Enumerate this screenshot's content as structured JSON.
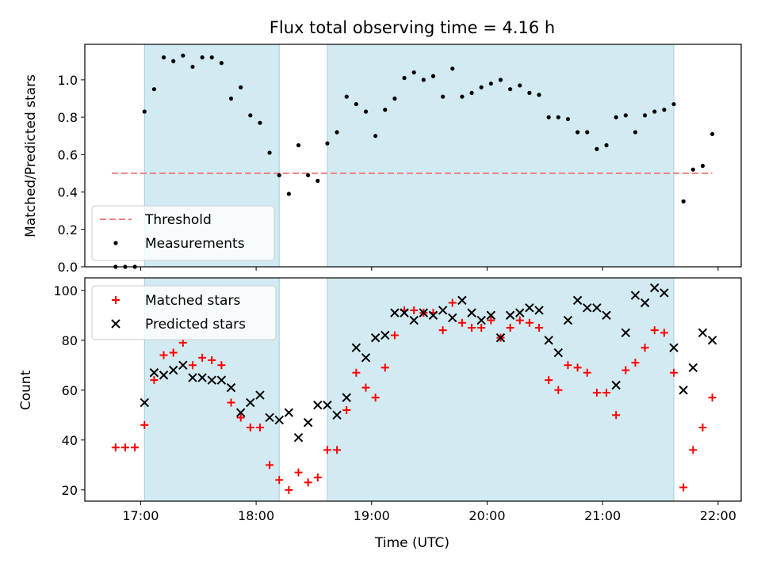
{
  "chart_data": [
    {
      "type": "scatter",
      "title": "Flux total observing time = 4.16 h",
      "ylabel": "Matched/Predicted stars",
      "xlabel": "",
      "ylim": [
        0,
        1.19
      ],
      "xlim": [
        "16:31",
        "22:12"
      ],
      "yticks": [
        "0.0",
        "0.2",
        "0.4",
        "0.6",
        "0.8",
        "1.0"
      ],
      "shaded_intervals": [
        [
          "17:02",
          "18:12"
        ],
        [
          "18:37",
          "21:37"
        ]
      ],
      "shade_color": "#add8e6",
      "threshold": {
        "name": "Threshold",
        "value": 0.5,
        "x_range": [
          "16:45",
          "21:57"
        ],
        "color": "#f08080"
      },
      "legend_position": "lower left",
      "series": [
        {
          "name": "Measurements",
          "color": "#000000",
          "marker": "dot",
          "points": [
            [
              "16:47",
              0.0
            ],
            [
              "16:52",
              0.0
            ],
            [
              "16:57",
              0.0
            ],
            [
              "17:02",
              0.83
            ],
            [
              "17:07",
              0.95
            ],
            [
              "17:12",
              1.12
            ],
            [
              "17:17",
              1.1
            ],
            [
              "17:22",
              1.13
            ],
            [
              "17:27",
              1.07
            ],
            [
              "17:32",
              1.12
            ],
            [
              "17:37",
              1.12
            ],
            [
              "17:42",
              1.09
            ],
            [
              "17:47",
              0.9
            ],
            [
              "17:52",
              0.96
            ],
            [
              "17:57",
              0.81
            ],
            [
              "18:02",
              0.77
            ],
            [
              "18:07",
              0.61
            ],
            [
              "18:12",
              0.49
            ],
            [
              "18:17",
              0.39
            ],
            [
              "18:22",
              0.65
            ],
            [
              "18:27",
              0.49
            ],
            [
              "18:32",
              0.46
            ],
            [
              "18:37",
              0.66
            ],
            [
              "18:42",
              0.72
            ],
            [
              "18:47",
              0.91
            ],
            [
              "18:52",
              0.87
            ],
            [
              "18:57",
              0.83
            ],
            [
              "19:02",
              0.7
            ],
            [
              "19:07",
              0.84
            ],
            [
              "19:12",
              0.9
            ],
            [
              "19:17",
              1.01
            ],
            [
              "19:22",
              1.04
            ],
            [
              "19:27",
              1.0
            ],
            [
              "19:32",
              1.02
            ],
            [
              "19:37",
              0.91
            ],
            [
              "19:42",
              1.06
            ],
            [
              "19:47",
              0.91
            ],
            [
              "19:52",
              0.93
            ],
            [
              "19:57",
              0.96
            ],
            [
              "20:02",
              0.98
            ],
            [
              "20:07",
              1.0
            ],
            [
              "20:12",
              0.95
            ],
            [
              "20:17",
              0.97
            ],
            [
              "20:22",
              0.93
            ],
            [
              "20:27",
              0.92
            ],
            [
              "20:32",
              0.8
            ],
            [
              "20:37",
              0.8
            ],
            [
              "20:42",
              0.79
            ],
            [
              "20:47",
              0.72
            ],
            [
              "20:52",
              0.72
            ],
            [
              "20:57",
              0.63
            ],
            [
              "21:02",
              0.65
            ],
            [
              "21:07",
              0.8
            ],
            [
              "21:12",
              0.81
            ],
            [
              "21:17",
              0.72
            ],
            [
              "21:22",
              0.81
            ],
            [
              "21:27",
              0.83
            ],
            [
              "21:32",
              0.84
            ],
            [
              "21:37",
              0.87
            ],
            [
              "21:42",
              0.35
            ],
            [
              "21:47",
              0.52
            ],
            [
              "21:52",
              0.54
            ],
            [
              "21:57",
              0.71
            ]
          ]
        }
      ]
    },
    {
      "type": "scatter",
      "title": "",
      "ylabel": "Count",
      "xlabel": "Time (UTC)",
      "ylim": [
        15.5,
        105
      ],
      "xlim": [
        "16:31",
        "22:12"
      ],
      "xticks": [
        "17:00",
        "18:00",
        "19:00",
        "20:00",
        "21:00",
        "22:00"
      ],
      "yticks": [
        "20",
        "40",
        "60",
        "80",
        "100"
      ],
      "shaded_intervals": [
        [
          "17:02",
          "18:12"
        ],
        [
          "18:37",
          "21:37"
        ]
      ],
      "shade_color": "#add8e6",
      "legend_position": "upper left",
      "series": [
        {
          "name": "Matched stars",
          "color": "#ff0000",
          "marker": "plus",
          "points": [
            [
              "16:47",
              37
            ],
            [
              "16:52",
              37
            ],
            [
              "16:57",
              37
            ],
            [
              "17:02",
              46
            ],
            [
              "17:07",
              64
            ],
            [
              "17:12",
              74
            ],
            [
              "17:17",
              75
            ],
            [
              "17:22",
              79
            ],
            [
              "17:27",
              70
            ],
            [
              "17:32",
              73
            ],
            [
              "17:37",
              72
            ],
            [
              "17:42",
              70
            ],
            [
              "17:47",
              55
            ],
            [
              "17:52",
              49
            ],
            [
              "17:57",
              45
            ],
            [
              "18:02",
              45
            ],
            [
              "18:07",
              30
            ],
            [
              "18:12",
              24
            ],
            [
              "18:17",
              20
            ],
            [
              "18:22",
              27
            ],
            [
              "18:27",
              23
            ],
            [
              "18:32",
              25
            ],
            [
              "18:37",
              36
            ],
            [
              "18:42",
              36
            ],
            [
              "18:47",
              52
            ],
            [
              "18:52",
              67
            ],
            [
              "18:57",
              61
            ],
            [
              "19:02",
              57
            ],
            [
              "19:07",
              69
            ],
            [
              "19:12",
              82
            ],
            [
              "19:17",
              92
            ],
            [
              "19:22",
              92
            ],
            [
              "19:27",
              91
            ],
            [
              "19:32",
              91
            ],
            [
              "19:37",
              84
            ],
            [
              "19:42",
              95
            ],
            [
              "19:47",
              87
            ],
            [
              "19:52",
              85
            ],
            [
              "19:57",
              85
            ],
            [
              "20:02",
              88
            ],
            [
              "20:07",
              81
            ],
            [
              "20:12",
              85
            ],
            [
              "20:17",
              88
            ],
            [
              "20:22",
              87
            ],
            [
              "20:27",
              85
            ],
            [
              "20:32",
              64
            ],
            [
              "20:37",
              60
            ],
            [
              "20:42",
              70
            ],
            [
              "20:47",
              69
            ],
            [
              "20:52",
              67
            ],
            [
              "20:57",
              59
            ],
            [
              "21:02",
              59
            ],
            [
              "21:07",
              50
            ],
            [
              "21:12",
              68
            ],
            [
              "21:17",
              71
            ],
            [
              "21:22",
              77
            ],
            [
              "21:27",
              84
            ],
            [
              "21:32",
              83
            ],
            [
              "21:37",
              67
            ],
            [
              "21:42",
              21
            ],
            [
              "21:47",
              36
            ],
            [
              "21:52",
              45
            ],
            [
              "21:57",
              57
            ]
          ]
        },
        {
          "name": "Predicted stars",
          "color": "#000000",
          "marker": "x",
          "points": [
            [
              "17:02",
              55
            ],
            [
              "17:07",
              67
            ],
            [
              "17:12",
              66
            ],
            [
              "17:17",
              68
            ],
            [
              "17:22",
              70
            ],
            [
              "17:27",
              65
            ],
            [
              "17:32",
              65
            ],
            [
              "17:37",
              64
            ],
            [
              "17:42",
              64
            ],
            [
              "17:47",
              61
            ],
            [
              "17:52",
              51
            ],
            [
              "17:57",
              55
            ],
            [
              "18:02",
              58
            ],
            [
              "18:07",
              49
            ],
            [
              "18:12",
              48
            ],
            [
              "18:17",
              51
            ],
            [
              "18:22",
              41
            ],
            [
              "18:27",
              47
            ],
            [
              "18:32",
              54
            ],
            [
              "18:37",
              54
            ],
            [
              "18:42",
              50
            ],
            [
              "18:47",
              57
            ],
            [
              "18:52",
              77
            ],
            [
              "18:57",
              73
            ],
            [
              "19:02",
              81
            ],
            [
              "19:07",
              82
            ],
            [
              "19:12",
              91
            ],
            [
              "19:17",
              91
            ],
            [
              "19:22",
              88
            ],
            [
              "19:27",
              91
            ],
            [
              "19:32",
              90
            ],
            [
              "19:37",
              92
            ],
            [
              "19:42",
              89
            ],
            [
              "19:47",
              96
            ],
            [
              "19:52",
              91
            ],
            [
              "19:57",
              88
            ],
            [
              "20:02",
              90
            ],
            [
              "20:07",
              81
            ],
            [
              "20:12",
              90
            ],
            [
              "20:17",
              91
            ],
            [
              "20:22",
              93
            ],
            [
              "20:27",
              92
            ],
            [
              "20:32",
              80
            ],
            [
              "20:37",
              75
            ],
            [
              "20:42",
              88
            ],
            [
              "20:47",
              96
            ],
            [
              "20:52",
              93
            ],
            [
              "20:57",
              93
            ],
            [
              "21:02",
              90
            ],
            [
              "21:07",
              62
            ],
            [
              "21:12",
              83
            ],
            [
              "21:17",
              98
            ],
            [
              "21:22",
              95
            ],
            [
              "21:27",
              101
            ],
            [
              "21:32",
              99
            ],
            [
              "21:37",
              77
            ],
            [
              "21:42",
              60
            ],
            [
              "21:47",
              69
            ],
            [
              "21:52",
              83
            ],
            [
              "21:57",
              80
            ]
          ]
        }
      ]
    }
  ]
}
